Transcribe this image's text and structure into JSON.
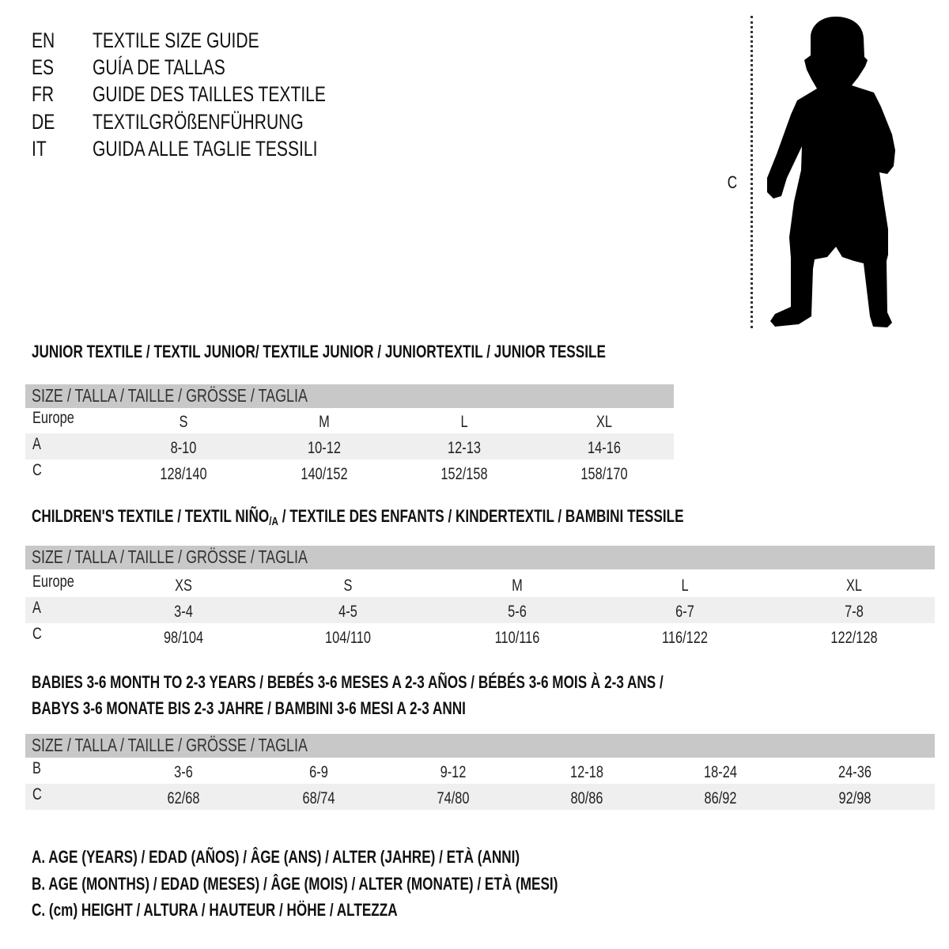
{
  "titles": [
    {
      "code": "EN",
      "text": "TEXTILE SIZE GUIDE"
    },
    {
      "code": "ES",
      "text": "GUÍA DE TALLAS"
    },
    {
      "code": "FR",
      "text": "GUIDE DES TAILLES TEXTILE"
    },
    {
      "code": "DE",
      "text": "TEXTILGRÖßENFÜHRUNG"
    },
    {
      "code": "IT",
      "text": "GUIDA ALLE TAGLIE TESSILI"
    }
  ],
  "figure": {
    "label": "C",
    "icon": "child-silhouette"
  },
  "tables": [
    {
      "title": "JUNIOR TEXTILE / TEXTIL JUNIOR/ TEXTILE JUNIOR / JUNIORTEXTIL / JUNIOR TESSILE",
      "header": "SIZE / TALLA / TAILLE / GRÖSSE / TAGLIA",
      "rows": [
        {
          "label": "Europe",
          "values": [
            "S",
            "M",
            "L",
            "XL"
          ]
        },
        {
          "label": "A",
          "values": [
            "8-10",
            "10-12",
            "12-13",
            "14-16"
          ]
        },
        {
          "label": "C",
          "values": [
            "128/140",
            "140/152",
            "152/158",
            "158/170"
          ]
        }
      ]
    },
    {
      "title_parts": [
        "CHILDREN'S TEXTILE / TEXTIL NIÑO",
        "/A",
        " / TEXTILE DES ENFANTS / KINDERTEXTIL / BAMBINI TESSILE"
      ],
      "header": "SIZE / TALLA / TAILLE / GRÖSSE / TAGLIA",
      "rows": [
        {
          "label": "Europe",
          "values": [
            "XS",
            "S",
            "M",
            "L",
            "XL"
          ]
        },
        {
          "label": "A",
          "values": [
            "3-4",
            "4-5",
            "5-6",
            "6-7",
            "7-8"
          ]
        },
        {
          "label": "C",
          "values": [
            "98/104",
            "104/110",
            "110/116",
            "116/122",
            "122/128"
          ]
        }
      ]
    },
    {
      "title_lines": [
        "BABIES 3-6 MONTH TO 2-3 YEARS / BEBÉS 3-6 MESES A 2-3 AÑOS / BÉBÉS 3-6 MOIS À 2-3 ANS /",
        "BABYS 3-6 MONATE BIS 2-3 JAHRE / BAMBINI 3-6 MESI A 2-3 ANNI"
      ],
      "header": "SIZE / TALLA / TAILLE / GRÖSSE / TAGLIA",
      "rows": [
        {
          "label": "B",
          "values": [
            "3-6",
            "6-9",
            "9-12",
            "12-18",
            "18-24",
            "24-36"
          ]
        },
        {
          "label": "C",
          "values": [
            "62/68",
            "68/74",
            "74/80",
            "80/86",
            "86/92",
            "92/98"
          ]
        }
      ]
    }
  ],
  "legend": [
    "A. AGE (YEARS) / EDAD (AÑOS) / ÂGE (ANS) / ALTER (JAHRE) / ETÀ (ANNI)",
    "B. AGE (MONTHS) / EDAD (MESES) / ÂGE (MOIS) / ALTER (MONATE) / ETÀ (MESI)",
    "C. (cm) HEIGHT / ALTURA / HAUTEUR / HÖHE / ALTEZZA"
  ]
}
